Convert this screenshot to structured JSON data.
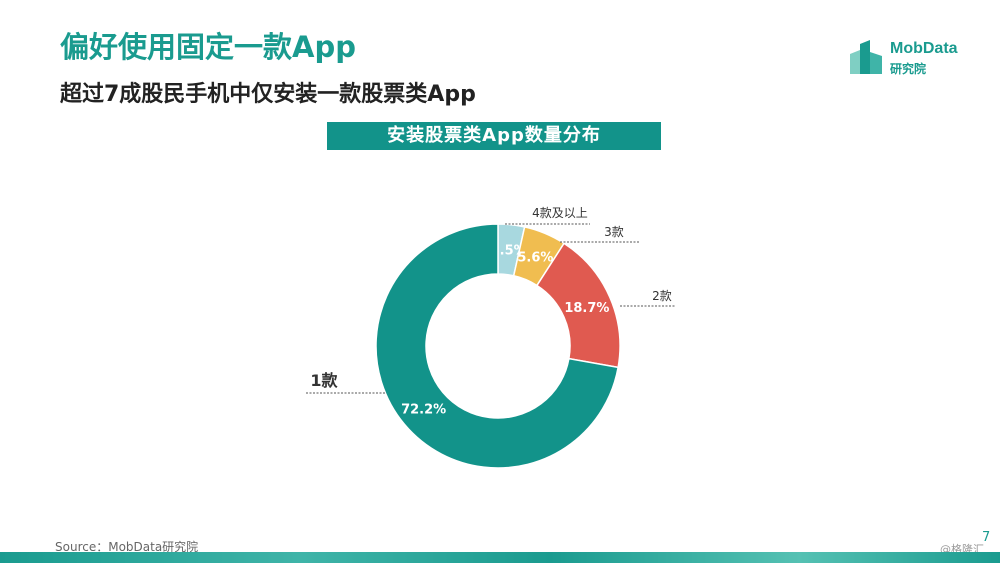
{
  "header": {
    "title": "偏好使用固定一款App",
    "subtitle": "超过7成股民手机中仅安装一款股票类App"
  },
  "logo": {
    "name": "MobData",
    "sub": "研究院",
    "color": "#1a9b8f"
  },
  "footer": {
    "source": "Source：MobData研究院",
    "page_number": "7",
    "watermark": "@格隆汇"
  },
  "chart_data": {
    "type": "pie",
    "variant": "donut",
    "title": "安装股票类App数量分布",
    "slices": [
      {
        "label": "4款及以上",
        "value": 3.5,
        "value_label": "3.5%",
        "color": "#a8d8df"
      },
      {
        "label": "3款",
        "value": 5.6,
        "value_label": "5.6%",
        "color": "#f0bd50"
      },
      {
        "label": "2款",
        "value": 18.7,
        "value_label": "18.7%",
        "color": "#e05a50"
      },
      {
        "label": "1款",
        "value": 72.2,
        "value_label": "72.2%",
        "color": "#12938a"
      }
    ]
  }
}
